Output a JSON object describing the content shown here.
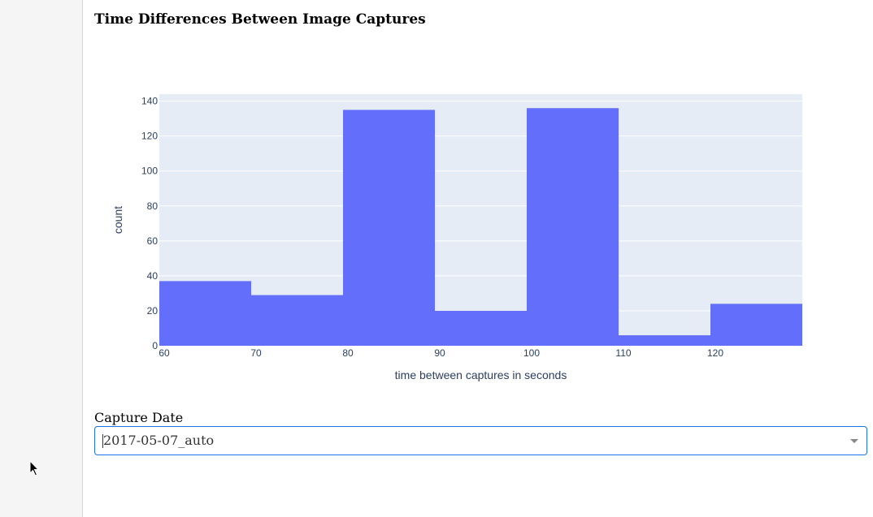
{
  "page": {
    "title": "Time Differences Between Image Captures"
  },
  "chart_data": {
    "type": "bar",
    "title": "",
    "xlabel": "time between captures in seconds",
    "ylabel": "count",
    "bins": [
      {
        "start": 60,
        "end": 70,
        "count": 37
      },
      {
        "start": 70,
        "end": 80,
        "count": 29
      },
      {
        "start": 80,
        "end": 90,
        "count": 135
      },
      {
        "start": 90,
        "end": 100,
        "count": 20
      },
      {
        "start": 100,
        "end": 110,
        "count": 136
      },
      {
        "start": 110,
        "end": 120,
        "count": 6
      },
      {
        "start": 120,
        "end": 130,
        "count": 24
      }
    ],
    "xlim": [
      60,
      130
    ],
    "ylim": [
      0,
      144
    ],
    "xticks": [
      60,
      70,
      80,
      90,
      100,
      110,
      120
    ],
    "yticks": [
      0,
      20,
      40,
      60,
      80,
      100,
      120,
      140
    ],
    "bar_color": "#636efa",
    "plot_background": "#e5ecf6",
    "grid": true
  },
  "capture_date": {
    "label": "Capture Date",
    "selected": "2017-05-07_auto"
  },
  "icons": {
    "dropdown_arrow": "chevron-down-icon",
    "cursor": "mouse-pointer-icon"
  }
}
